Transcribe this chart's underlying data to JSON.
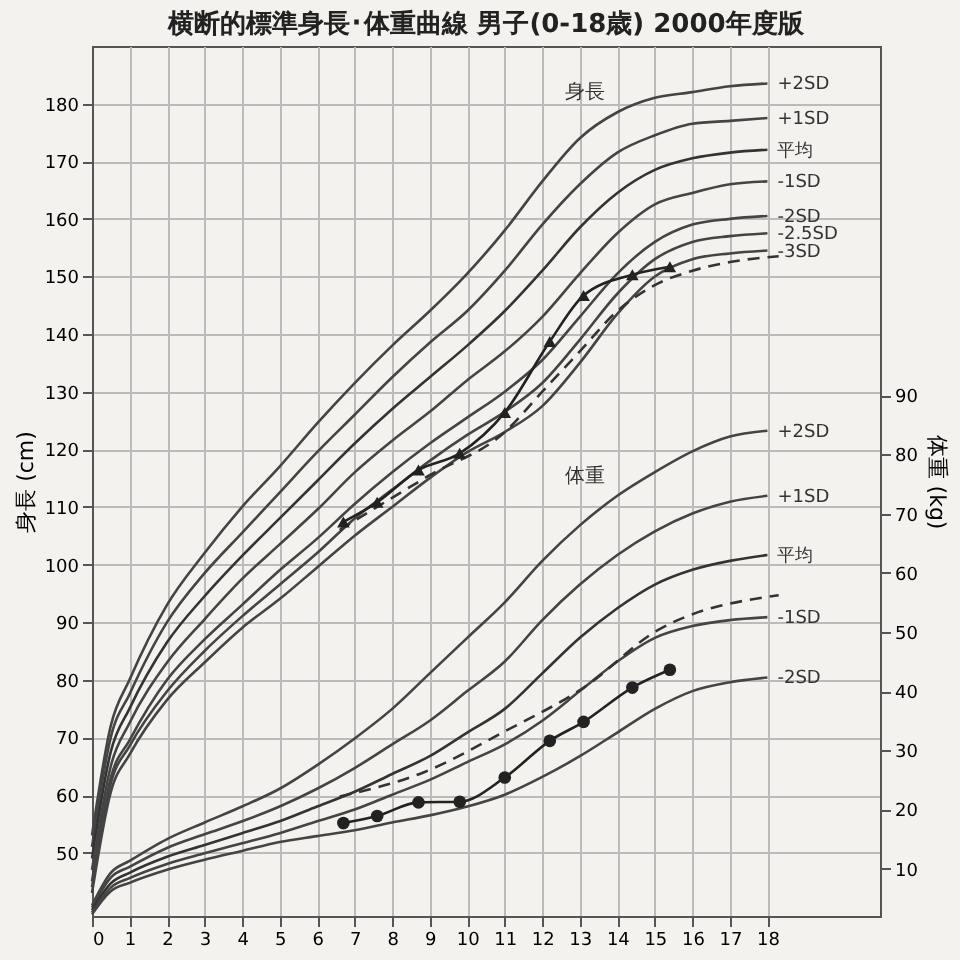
{
  "chart_data": {
    "type": "line",
    "title": "横断的標準身長･体重曲線 男子(0-18歳) 2000年度版",
    "ylabel": "身長 (cm)",
    "y2label": "体重 (kg)",
    "xlim": [
      0,
      21
    ],
    "xticks": [
      0,
      1,
      2,
      3,
      4,
      5,
      6,
      7,
      8,
      9,
      10,
      11,
      12,
      13,
      14,
      15,
      16,
      17,
      18
    ],
    "ylim": [
      39,
      190
    ],
    "yticks": [
      50,
      60,
      70,
      80,
      90,
      100,
      110,
      120,
      130,
      140,
      150,
      160,
      170,
      180
    ],
    "y2lim": [
      2,
      149
    ],
    "y2ticks": [
      10,
      20,
      30,
      40,
      50,
      60,
      70,
      80,
      90
    ],
    "grid": true,
    "marker": "none",
    "line_style": "solid",
    "x": [
      0,
      0.5,
      1,
      2,
      3,
      4,
      5,
      6,
      7,
      8,
      9,
      10,
      11,
      12,
      13,
      14,
      15,
      16,
      17,
      18
    ],
    "annotations": [
      "身長",
      "体重"
    ],
    "series": [
      {
        "name": "+2SD",
        "color": "#444444",
        "values": [
          53,
          72,
          80,
          93,
          102,
          110,
          117,
          124.5,
          131.5,
          138,
          144,
          150.5,
          158,
          166.5,
          174,
          178.5,
          181,
          182,
          183,
          183.5
        ]
      },
      {
        "name": "+1SD",
        "color": "#444444",
        "values": [
          51,
          70,
          77.5,
          90,
          98.5,
          105.5,
          112.5,
          119.5,
          126,
          132.5,
          138.5,
          144,
          151,
          159,
          166,
          171.5,
          174.5,
          176.5,
          177,
          177.5
        ]
      },
      {
        "name": "平均",
        "color": "#333333",
        "values": [
          49,
          67.5,
          75,
          86.5,
          94.5,
          101.5,
          108,
          114.5,
          121,
          127,
          132.5,
          138,
          144,
          151,
          158.5,
          164.5,
          168.5,
          170.5,
          171.5,
          172
        ]
      },
      {
        "name": "-1SD",
        "color": "#444444",
        "values": [
          47,
          65,
          72.5,
          83,
          90.5,
          97.5,
          103.5,
          109.5,
          116,
          121.5,
          126.5,
          132,
          137,
          143,
          150.5,
          157.5,
          162.5,
          164.5,
          166,
          166.5
        ]
      },
      {
        "name": "-2SD",
        "color": "#444444",
        "values": [
          45,
          63,
          69.5,
          80,
          87,
          93,
          99,
          104.5,
          110.5,
          116,
          121,
          125.5,
          130,
          135.5,
          143,
          150.5,
          156,
          159,
          160,
          160.5
        ]
      },
      {
        "name": "-2.5SD",
        "color": "#444444",
        "values": [
          44,
          62,
          68.5,
          78,
          85,
          91,
          96.5,
          102,
          108,
          113,
          118,
          122.5,
          126.5,
          131.5,
          139,
          147,
          153,
          156,
          157,
          157.5
        ]
      },
      {
        "name": "-3SD",
        "color": "#444444",
        "values": [
          43,
          60.5,
          67,
          76.5,
          83,
          89,
          94,
          99.5,
          105,
          110,
          115,
          119.5,
          123,
          127.5,
          135,
          143.5,
          150,
          153,
          154,
          154.5
        ]
      },
      {
        "color": "#333333",
        "line_style": "dashed",
        "x": [
          6.6,
          9,
          11,
          12,
          13,
          14,
          15,
          16,
          17,
          18.3
        ],
        "values": [
          106,
          115.5,
          123,
          130,
          137,
          144,
          148.5,
          151,
          152.5,
          153.5
        ]
      },
      {
        "color": "#222222",
        "marker": "triangle",
        "x": [
          6.7,
          7.6,
          8.7,
          9.8,
          11,
          12.2,
          13.1,
          14.4,
          15.4
        ],
        "values": [
          107.4,
          110.8,
          116.4,
          119.3,
          126.4,
          138.7,
          146.7,
          150.3,
          151.7
        ]
      },
      {
        "name": "+2SD",
        "color": "#444444",
        "axis": "y2",
        "values": [
          3.8,
          9.3,
          11.3,
          15,
          17.8,
          20.5,
          23.5,
          27.5,
          32,
          37,
          43,
          49,
          55,
          62,
          68,
          73,
          77,
          80.5,
          83,
          84
        ]
      },
      {
        "name": "+1SD",
        "color": "#444444",
        "axis": "y2",
        "values": [
          3.4,
          8.5,
          10.3,
          13.5,
          15.8,
          18,
          20.5,
          23.5,
          27,
          31,
          35,
          40,
          45,
          52,
          58,
          63,
          67,
          70,
          72,
          73
        ]
      },
      {
        "name": "平均",
        "color": "#333333",
        "axis": "y2",
        "values": [
          3,
          7.5,
          9.3,
          12,
          14,
          16,
          18,
          20.5,
          23,
          26,
          29,
          33,
          37,
          43,
          49,
          54,
          58,
          60.5,
          62,
          63
        ]
      },
      {
        "name": "-1SD",
        "color": "#444444",
        "axis": "y2",
        "values": [
          2.6,
          6.8,
          8.4,
          10.8,
          12.6,
          14.3,
          16,
          18,
          20,
          22.5,
          25,
          28,
          31,
          35,
          40,
          45,
          49,
          51,
          52,
          52.5
        ]
      },
      {
        "name": "-2SD",
        "color": "#444444",
        "axis": "y2",
        "values": [
          2.3,
          6.2,
          7.6,
          9.8,
          11.5,
          13,
          14.5,
          15.5,
          16.5,
          17.8,
          19,
          20.5,
          22.5,
          25.5,
          29,
          33,
          37,
          40,
          41.5,
          42.3
        ]
      },
      {
        "color": "#333333",
        "axis": "y2",
        "line_style": "dashed",
        "x": [
          6.6,
          8.85,
          11,
          13.2,
          15,
          18.3
        ],
        "values": [
          22.2,
          26.3,
          33.2,
          41,
          50,
          56.2
        ]
      },
      {
        "color": "#222222",
        "axis": "y2",
        "marker": "circle",
        "x": [
          6.7,
          7.6,
          8.7,
          9.8,
          11,
          12.2,
          13.1,
          14.4,
          15.4
        ],
        "values": [
          17.7,
          18.9,
          21.2,
          21.3,
          25.4,
          31.6,
          34.8,
          40.6,
          43.6
        ]
      }
    ]
  }
}
